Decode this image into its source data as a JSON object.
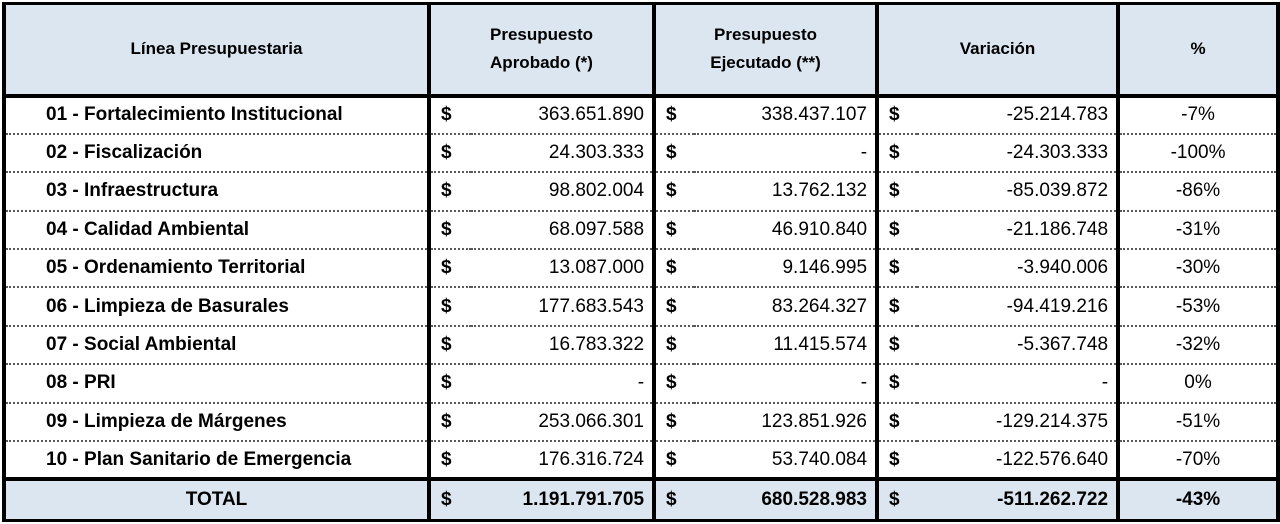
{
  "table": {
    "headers": {
      "line": "Línea Presupuestaria",
      "approved_l1": "Presupuesto",
      "approved_l2": "Aprobado (*)",
      "executed_l1": "Presupuesto",
      "executed_l2": "Ejecutado (**)",
      "variation": "Variación",
      "percent": "%"
    },
    "currency_symbol": "$",
    "rows": [
      {
        "line": "01 - Fortalecimiento Institucional",
        "approved": "363.651.890",
        "executed": "338.437.107",
        "variation": "-25.214.783",
        "percent": "-7%"
      },
      {
        "line": "02 - Fiscalización",
        "approved": "24.303.333",
        "executed": "-",
        "variation": "-24.303.333",
        "percent": "-100%"
      },
      {
        "line": "03 - Infraestructura",
        "approved": "98.802.004",
        "executed": "13.762.132",
        "variation": "-85.039.872",
        "percent": "-86%"
      },
      {
        "line": "04 - Calidad Ambiental",
        "approved": "68.097.588",
        "executed": "46.910.840",
        "variation": "-21.186.748",
        "percent": "-31%"
      },
      {
        "line": "05 - Ordenamiento Territorial",
        "approved": "13.087.000",
        "executed": "9.146.995",
        "variation": "-3.940.006",
        "percent": "-30%"
      },
      {
        "line": "06 - Limpieza de Basurales",
        "approved": "177.683.543",
        "executed": "83.264.327",
        "variation": "-94.419.216",
        "percent": "-53%"
      },
      {
        "line": "07 - Social Ambiental",
        "approved": "16.783.322",
        "executed": "11.415.574",
        "variation": "-5.367.748",
        "percent": "-32%"
      },
      {
        "line": "08 - PRI",
        "approved": "-",
        "executed": "-",
        "variation": "-",
        "percent": "0%"
      },
      {
        "line": "09 - Limpieza de Márgenes",
        "approved": "253.066.301",
        "executed": "123.851.926",
        "variation": "-129.214.375",
        "percent": "-51%"
      },
      {
        "line": "10 - Plan Sanitario de Emergencia",
        "approved": "176.316.724",
        "executed": "53.740.084",
        "variation": "-122.576.640",
        "percent": "-70%"
      }
    ],
    "total": {
      "line": "TOTAL",
      "approved": "1.191.791.705",
      "executed": "680.528.983",
      "variation": "-511.262.722",
      "percent": "-43%"
    }
  }
}
